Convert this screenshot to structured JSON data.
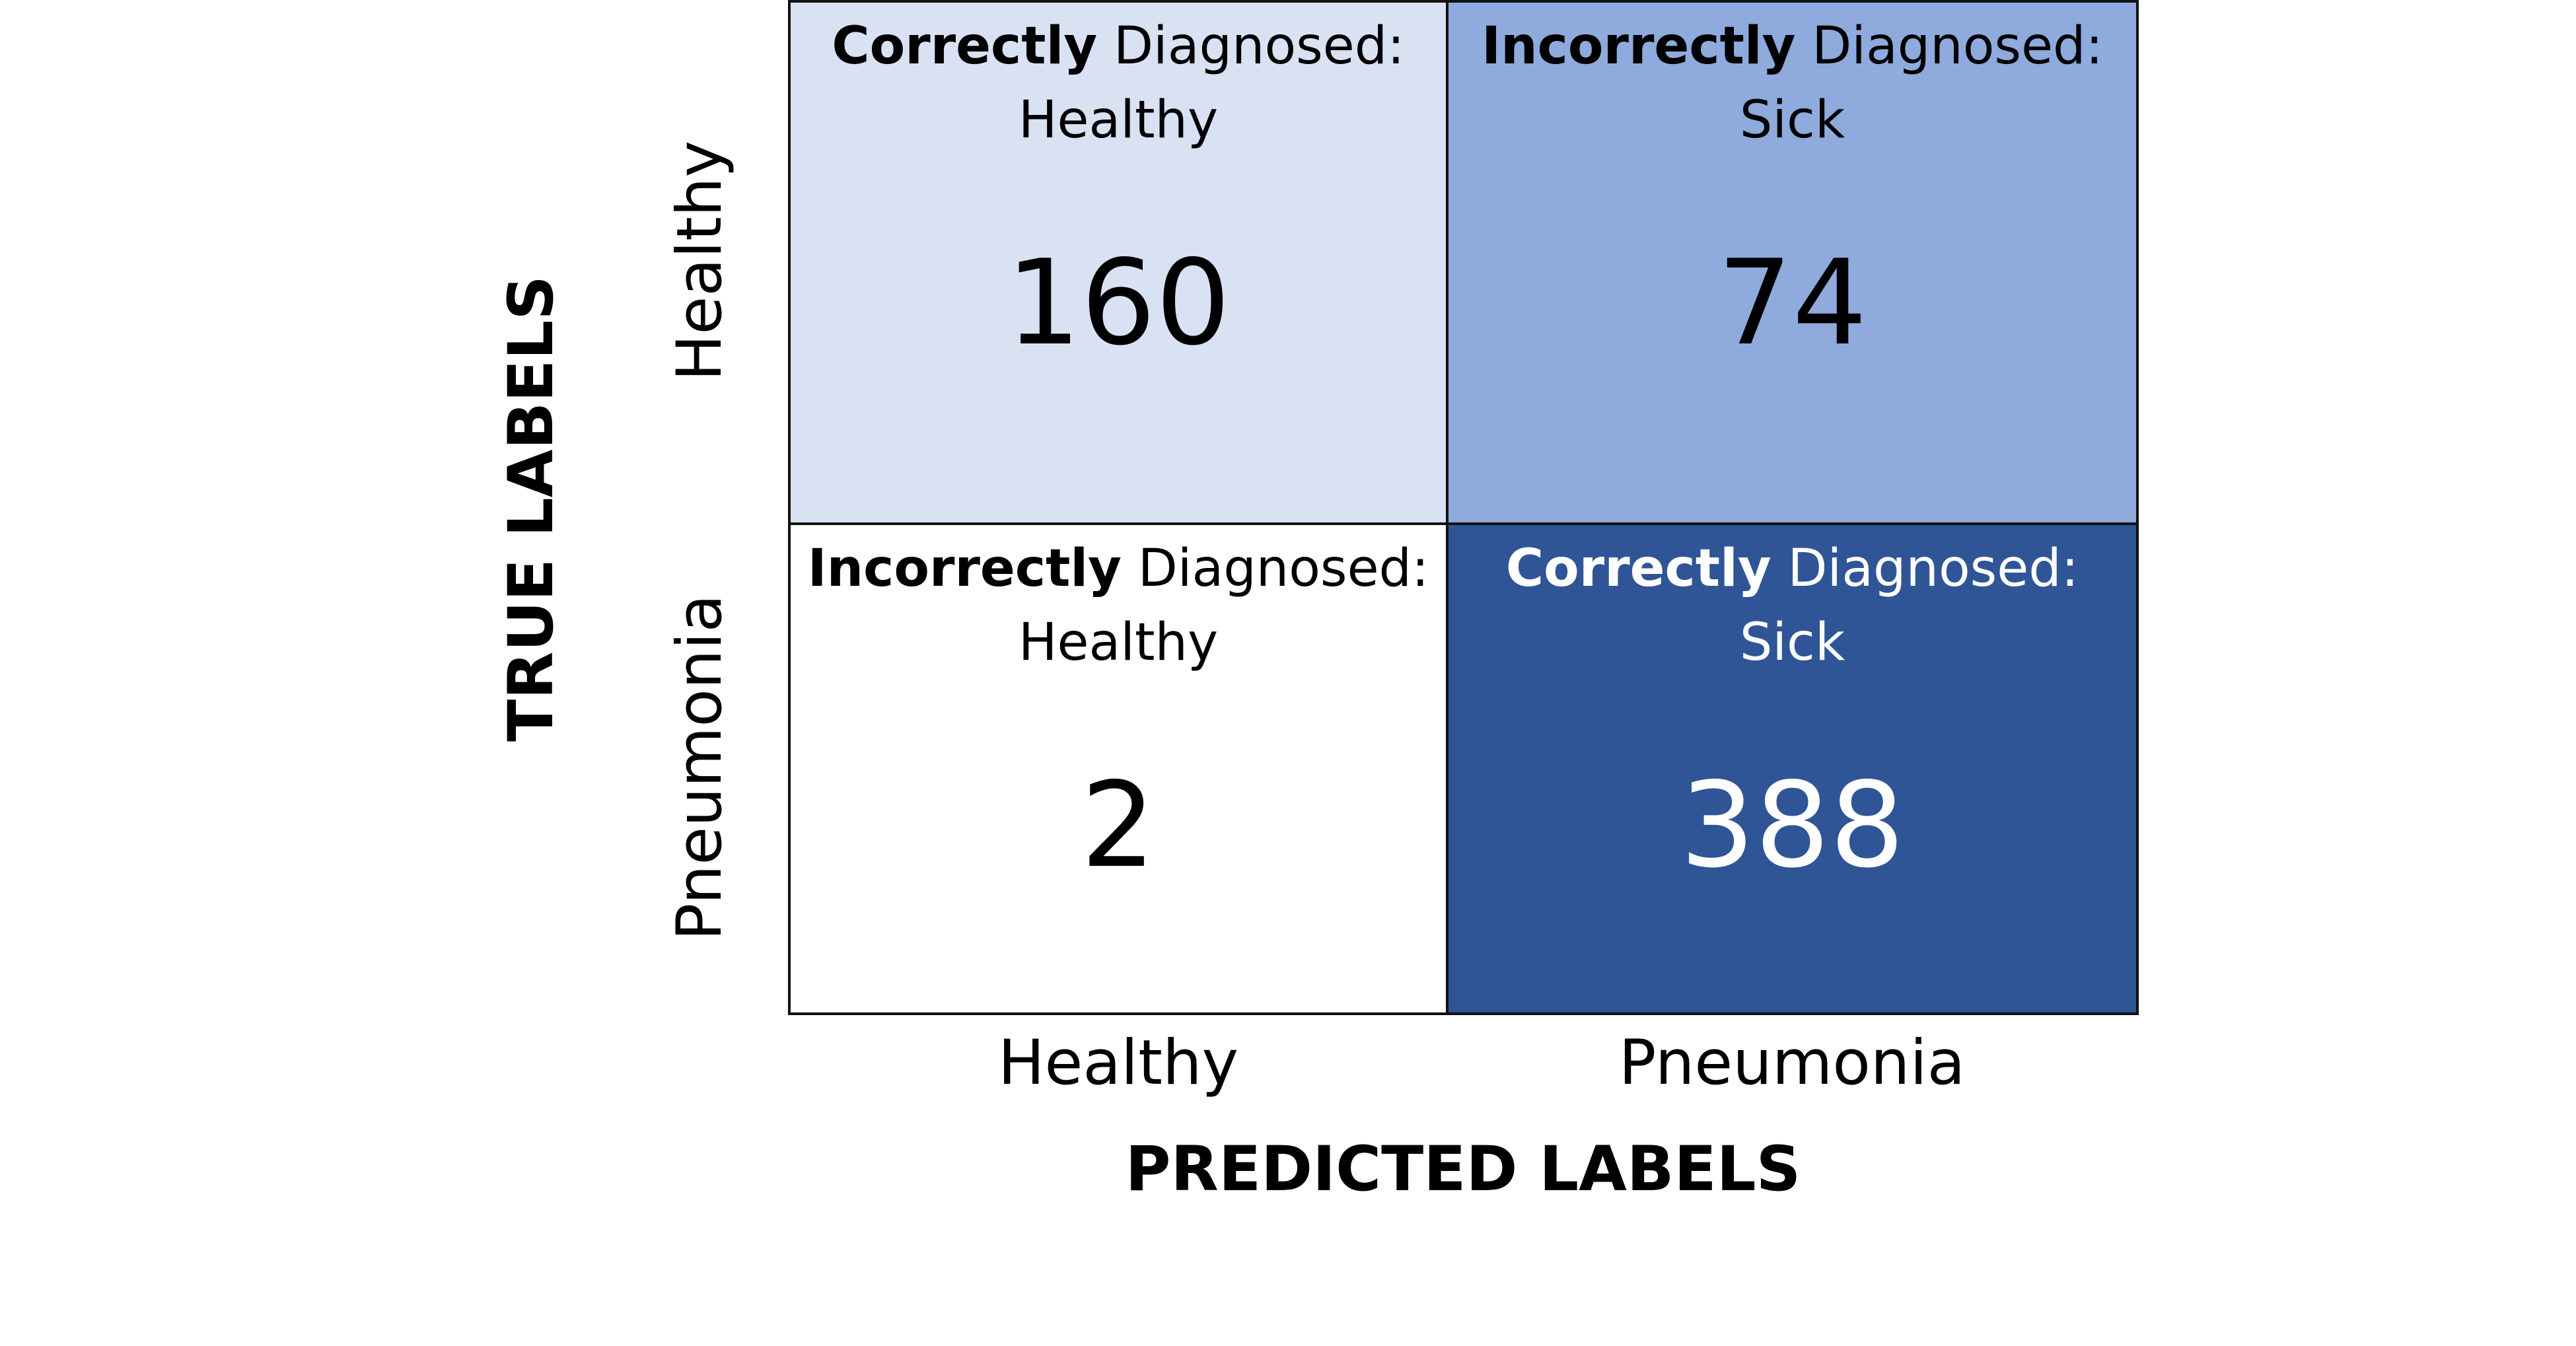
{
  "chart_data": {
    "type": "heatmap",
    "title": "",
    "xlabel": "PREDICTED LABELS",
    "ylabel": "TRUE LABELS",
    "x_categories": [
      "Healthy",
      "Pneumonia"
    ],
    "y_categories": [
      "Healthy",
      "Pneumonia"
    ],
    "values": [
      [
        160,
        74
      ],
      [
        2,
        388
      ]
    ],
    "cells": [
      [
        {
          "strong": "Correctly",
          "rest": " Diagnosed:",
          "outcome": "Healthy",
          "value": "160",
          "color": "#d9e2f3",
          "text_color": "#000000"
        },
        {
          "strong": "Incorrectly",
          "rest": " Diagnosed:",
          "outcome": "Sick",
          "value": "74",
          "color": "#8faadc",
          "text_color": "#000000"
        }
      ],
      [
        {
          "strong": "Incorrectly",
          "rest": " Diagnosed:",
          "outcome": "Healthy",
          "value": "2",
          "color": "#ffffff",
          "text_color": "#000000"
        },
        {
          "strong": "Correctly",
          "rest": " Diagnosed:",
          "outcome": "Sick",
          "value": "388",
          "color": "#2f5597",
          "text_color": "#ffffff"
        }
      ]
    ],
    "grid": false,
    "legend": "none"
  }
}
